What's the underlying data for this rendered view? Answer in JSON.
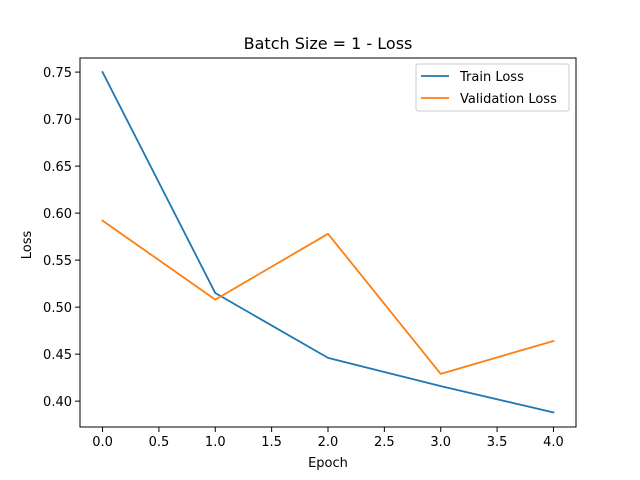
{
  "chart_data": {
    "type": "line",
    "title": "Batch Size = 1 - Loss",
    "xlabel": "Epoch",
    "ylabel": "Loss",
    "x": [
      0,
      1,
      2,
      3,
      4
    ],
    "xlim": [
      -0.2,
      4.2
    ],
    "ylim": [
      0.3725,
      0.765
    ],
    "xticks": [
      "0.0",
      "0.5",
      "1.0",
      "1.5",
      "2.0",
      "2.5",
      "3.0",
      "3.5",
      "4.0"
    ],
    "xtick_values": [
      0,
      0.5,
      1,
      1.5,
      2,
      2.5,
      3,
      3.5,
      4
    ],
    "yticks": [
      "0.40",
      "0.45",
      "0.50",
      "0.55",
      "0.60",
      "0.65",
      "0.70",
      "0.75"
    ],
    "ytick_values": [
      0.4,
      0.45,
      0.5,
      0.55,
      0.6,
      0.65,
      0.7,
      0.75
    ],
    "grid": false,
    "legend_position": "upper right",
    "series": [
      {
        "name": "Train Loss",
        "color": "#1f77b4",
        "values": [
          0.75,
          0.515,
          0.446,
          0.416,
          0.388
        ]
      },
      {
        "name": "Validation Loss",
        "color": "#ff7f0e",
        "values": [
          0.592,
          0.508,
          0.578,
          0.429,
          0.464
        ]
      }
    ]
  }
}
